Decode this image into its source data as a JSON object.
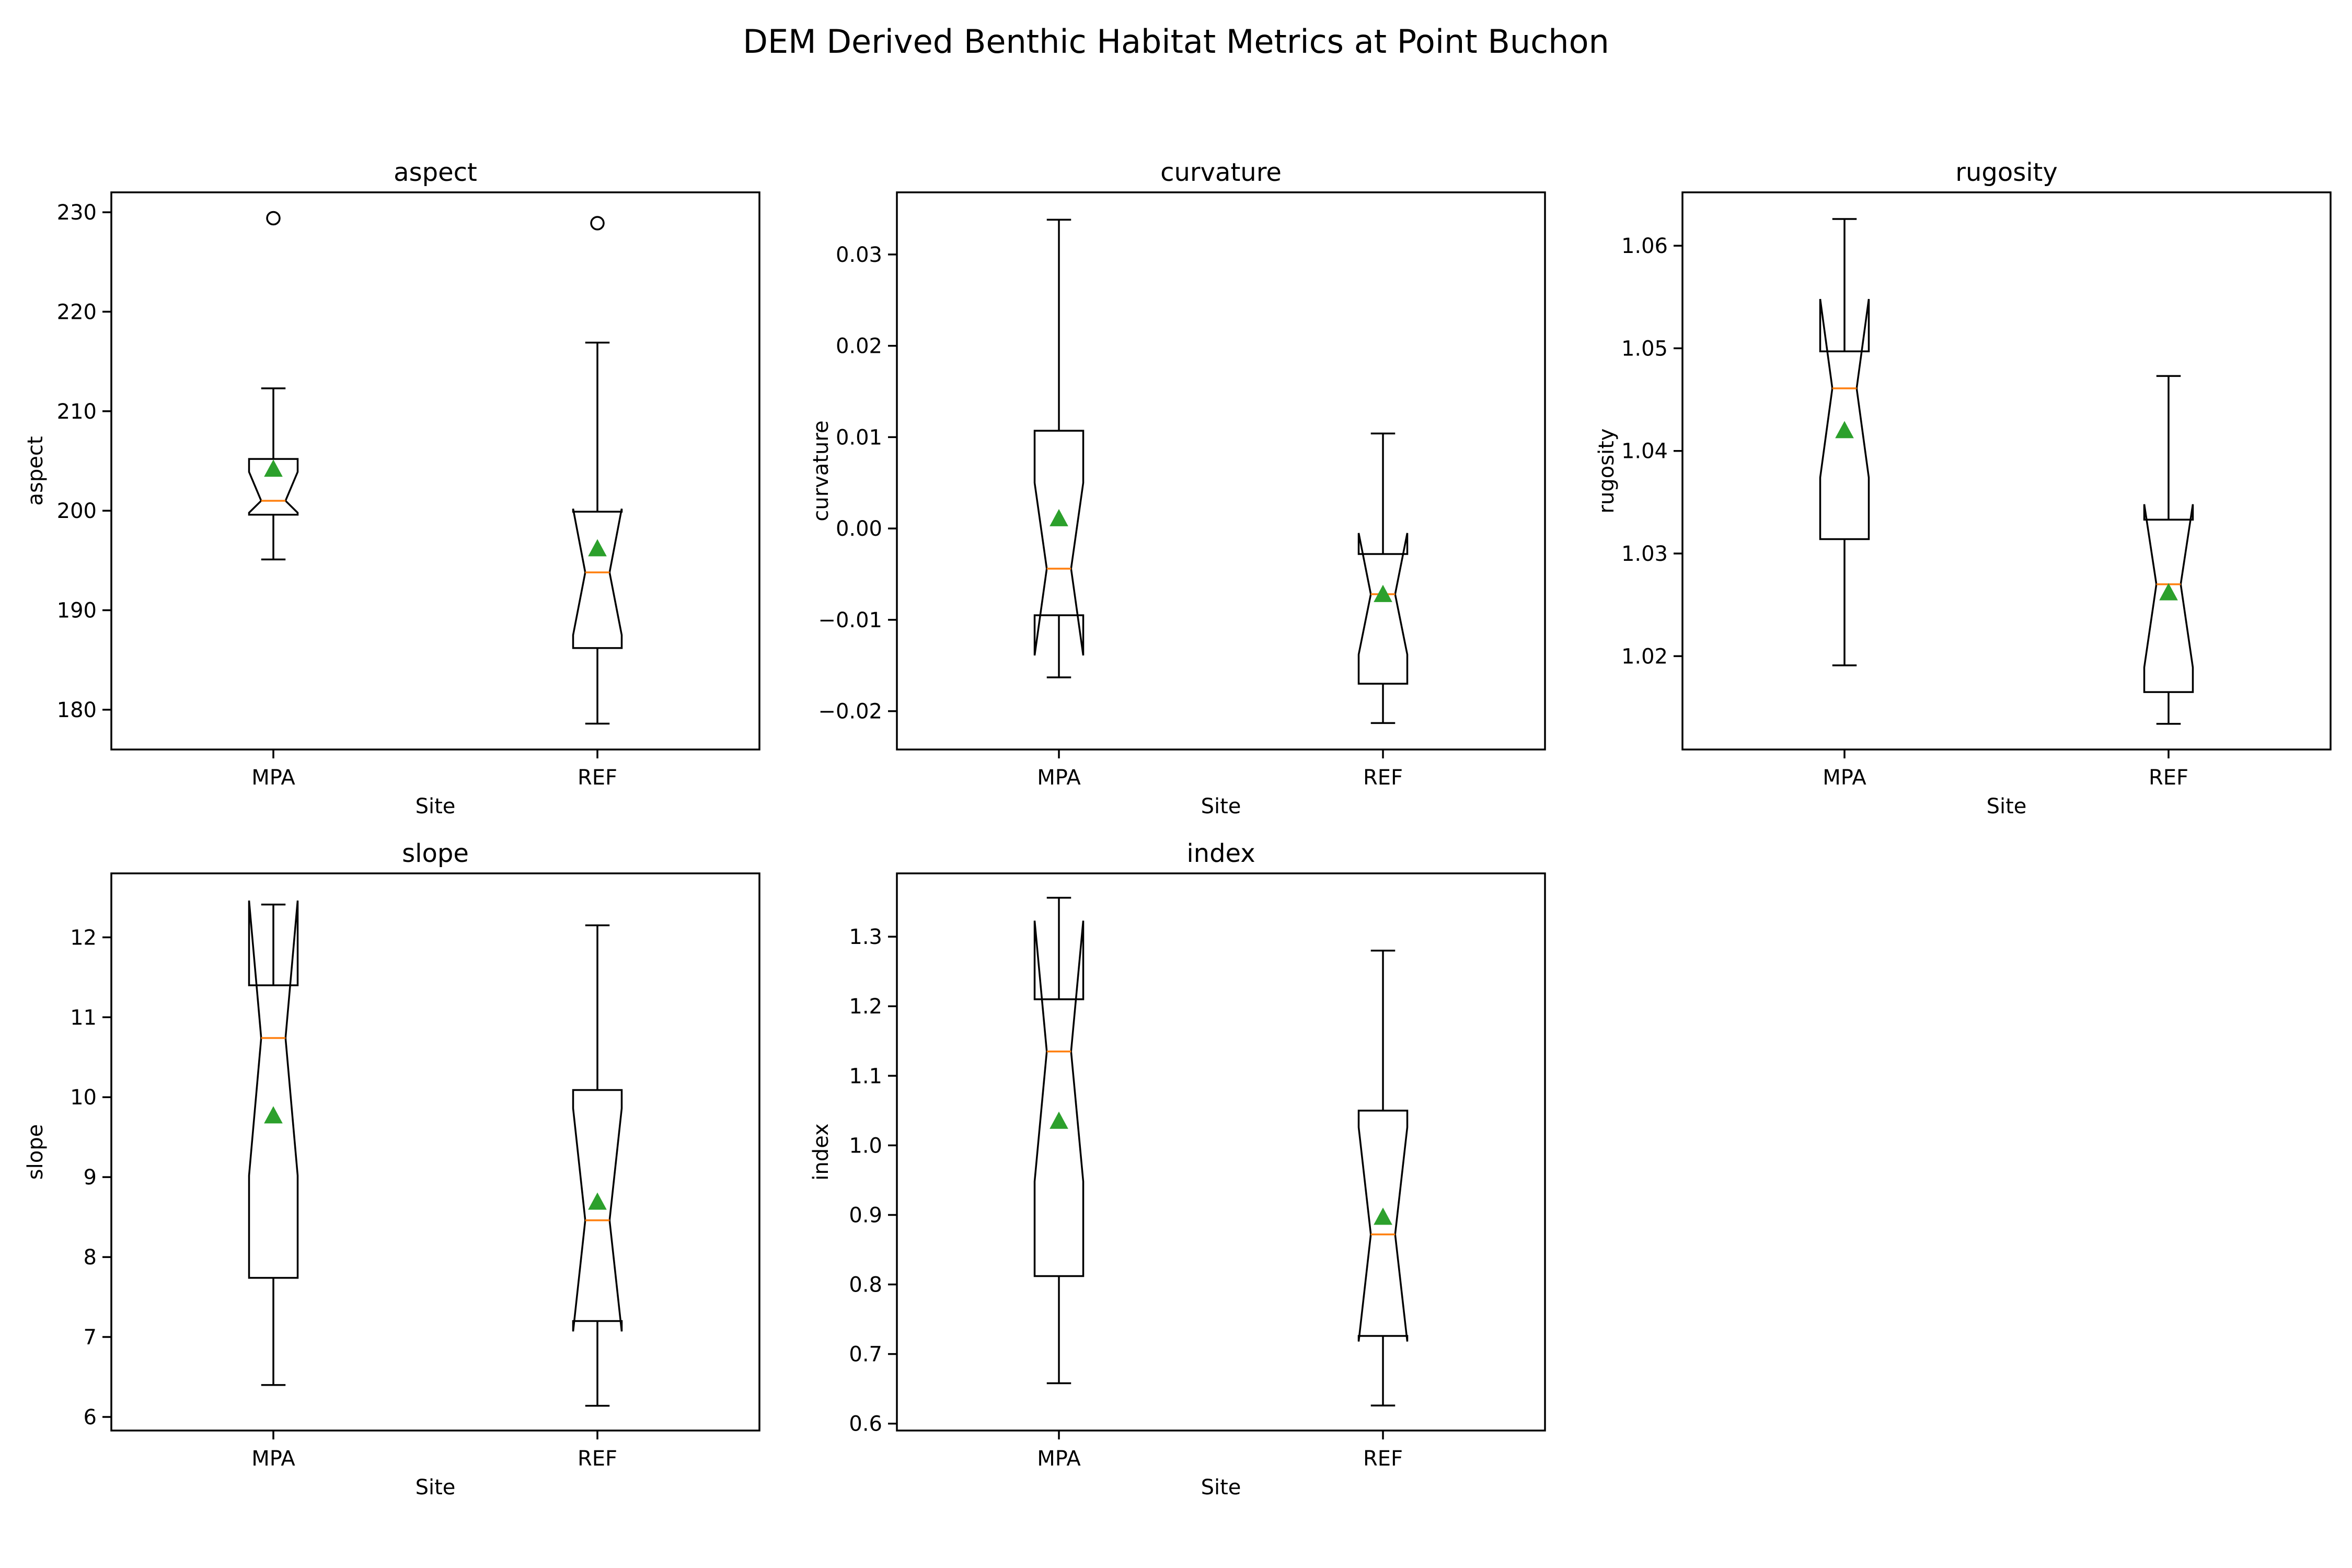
{
  "figure": {
    "title": "DEM Derived Benthic Habitat Metrics at Point Buchon"
  },
  "colors": {
    "box": "#000000",
    "median": "#ff7f0e",
    "mean": "#2ca02c",
    "background": "#ffffff"
  },
  "chart_data": [
    {
      "type": "box",
      "title": "aspect",
      "xlabel": "Site",
      "ylabel": "aspect",
      "notched": true,
      "ylim": [
        176,
        232
      ],
      "yticks": [
        180,
        190,
        200,
        210,
        220,
        230
      ],
      "tick_labels": [
        "180",
        "190",
        "200",
        "210",
        "220",
        "230"
      ],
      "categories": [
        "MPA",
        "REF"
      ],
      "boxes": [
        {
          "category": "MPA",
          "whislo": 195.1,
          "q1": 199.6,
          "med": 201.0,
          "q3": 205.2,
          "whishi": 212.3,
          "notch_lo": 199.8,
          "notch_hi": 203.9,
          "mean": 204.2,
          "fliers": [
            229.4
          ]
        },
        {
          "category": "REF",
          "whislo": 178.6,
          "q1": 186.2,
          "med": 193.8,
          "q3": 199.9,
          "whishi": 216.9,
          "notch_lo": 187.5,
          "notch_hi": 200.2,
          "mean": 196.2,
          "fliers": [
            228.9
          ]
        }
      ]
    },
    {
      "type": "box",
      "title": "curvature",
      "xlabel": "Site",
      "ylabel": "curvature",
      "notched": true,
      "ylim": [
        -0.0242,
        0.0368
      ],
      "yticks": [
        -0.02,
        -0.01,
        0.0,
        0.01,
        0.02,
        0.03
      ],
      "tick_labels": [
        "−0.02",
        "−0.01",
        "0.00",
        "0.01",
        "0.02",
        "0.03"
      ],
      "categories": [
        "MPA",
        "REF"
      ],
      "boxes": [
        {
          "category": "MPA",
          "whislo": -0.0163,
          "q1": -0.0095,
          "med": -0.0044,
          "q3": 0.0107,
          "whishi": 0.0338,
          "notch_lo": -0.0139,
          "notch_hi": 0.005,
          "mean": 0.0011,
          "fliers": []
        },
        {
          "category": "REF",
          "whislo": -0.0213,
          "q1": -0.017,
          "med": -0.0072,
          "q3": -0.0028,
          "whishi": 0.0104,
          "notch_lo": -0.0138,
          "notch_hi": -0.0005,
          "mean": -0.0072,
          "fliers": []
        }
      ]
    },
    {
      "type": "box",
      "title": "rugosity",
      "xlabel": "Site",
      "ylabel": "rugosity",
      "notched": true,
      "ylim": [
        1.0109,
        1.0652
      ],
      "yticks": [
        1.02,
        1.03,
        1.04,
        1.05,
        1.06
      ],
      "tick_labels": [
        "1.02",
        "1.03",
        "1.04",
        "1.05",
        "1.06"
      ],
      "categories": [
        "MPA",
        "REF"
      ],
      "boxes": [
        {
          "category": "MPA",
          "whislo": 1.0191,
          "q1": 1.0314,
          "med": 1.0461,
          "q3": 1.0497,
          "whishi": 1.0626,
          "notch_lo": 1.0374,
          "notch_hi": 1.0548,
          "mean": 1.042,
          "fliers": []
        },
        {
          "category": "REF",
          "whislo": 1.0134,
          "q1": 1.0165,
          "med": 1.027,
          "q3": 1.0333,
          "whishi": 1.0473,
          "notch_lo": 1.0189,
          "notch_hi": 1.0348,
          "mean": 1.0262,
          "fliers": []
        }
      ]
    },
    {
      "type": "box",
      "title": "slope",
      "xlabel": "Site",
      "ylabel": "slope",
      "notched": true,
      "ylim": [
        5.83,
        12.8
      ],
      "yticks": [
        6,
        7,
        8,
        9,
        10,
        11,
        12
      ],
      "tick_labels": [
        "6",
        "7",
        "8",
        "9",
        "10",
        "11",
        "12"
      ],
      "categories": [
        "MPA",
        "REF"
      ],
      "boxes": [
        {
          "category": "MPA",
          "whislo": 6.4,
          "q1": 7.74,
          "med": 10.74,
          "q3": 11.4,
          "whishi": 12.41,
          "notch_lo": 9.02,
          "notch_hi": 12.46,
          "mean": 9.77,
          "fliers": []
        },
        {
          "category": "REF",
          "whislo": 6.14,
          "q1": 7.2,
          "med": 8.46,
          "q3": 10.09,
          "whishi": 12.15,
          "notch_lo": 7.07,
          "notch_hi": 9.86,
          "mean": 8.69,
          "fliers": []
        }
      ]
    },
    {
      "type": "box",
      "title": "index",
      "xlabel": "Site",
      "ylabel": "index",
      "notched": true,
      "ylim": [
        0.59,
        1.391
      ],
      "yticks": [
        0.6,
        0.7,
        0.8,
        0.9,
        1.0,
        1.1,
        1.2,
        1.3
      ],
      "tick_labels": [
        "0.6",
        "0.7",
        "0.8",
        "0.9",
        "1.0",
        "1.1",
        "1.2",
        "1.3"
      ],
      "categories": [
        "MPA",
        "REF"
      ],
      "boxes": [
        {
          "category": "MPA",
          "whislo": 0.658,
          "q1": 0.812,
          "med": 1.135,
          "q3": 1.21,
          "whishi": 1.356,
          "notch_lo": 0.948,
          "notch_hi": 1.323,
          "mean": 1.035,
          "fliers": []
        },
        {
          "category": "REF",
          "whislo": 0.626,
          "q1": 0.726,
          "med": 0.872,
          "q3": 1.05,
          "whishi": 1.28,
          "notch_lo": 0.718,
          "notch_hi": 1.026,
          "mean": 0.897,
          "fliers": []
        }
      ]
    }
  ]
}
